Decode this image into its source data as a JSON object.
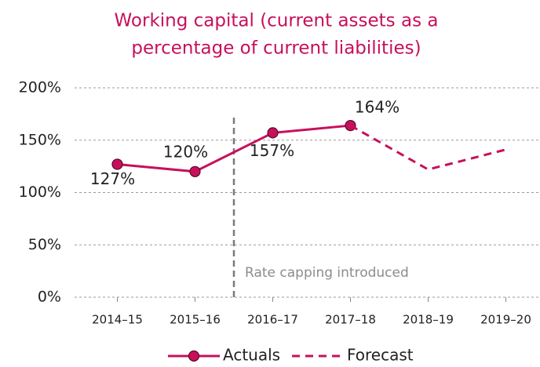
{
  "chart_data": {
    "type": "line",
    "title": [
      "Working capital (current assets as a",
      "percentage of current liabilities)"
    ],
    "categories": [
      "2014–15",
      "2015–16",
      "2016–17",
      "2017–18",
      "2018–19",
      "2019–20"
    ],
    "series": [
      {
        "name": "Actuals",
        "color": "#c7105c",
        "dashed": false,
        "marker": true,
        "values": [
          127,
          120,
          157,
          164,
          null,
          null
        ],
        "value_labels": [
          "127%",
          "120%",
          "157%",
          "164%",
          null,
          null
        ]
      },
      {
        "name": "Forecast",
        "color": "#c7105c",
        "dashed": true,
        "marker": false,
        "values": [
          null,
          null,
          null,
          164,
          122,
          141
        ]
      }
    ],
    "annotation": "Rate capping introduced",
    "ylim": [
      0,
      200
    ],
    "yticks": [
      {
        "value": 0,
        "label": "0%"
      },
      {
        "value": 50,
        "label": "50%"
      },
      {
        "value": 100,
        "label": "100%"
      },
      {
        "value": 150,
        "label": "150%"
      },
      {
        "value": 200,
        "label": "200%"
      }
    ],
    "grid": true,
    "legend": "bottom"
  }
}
